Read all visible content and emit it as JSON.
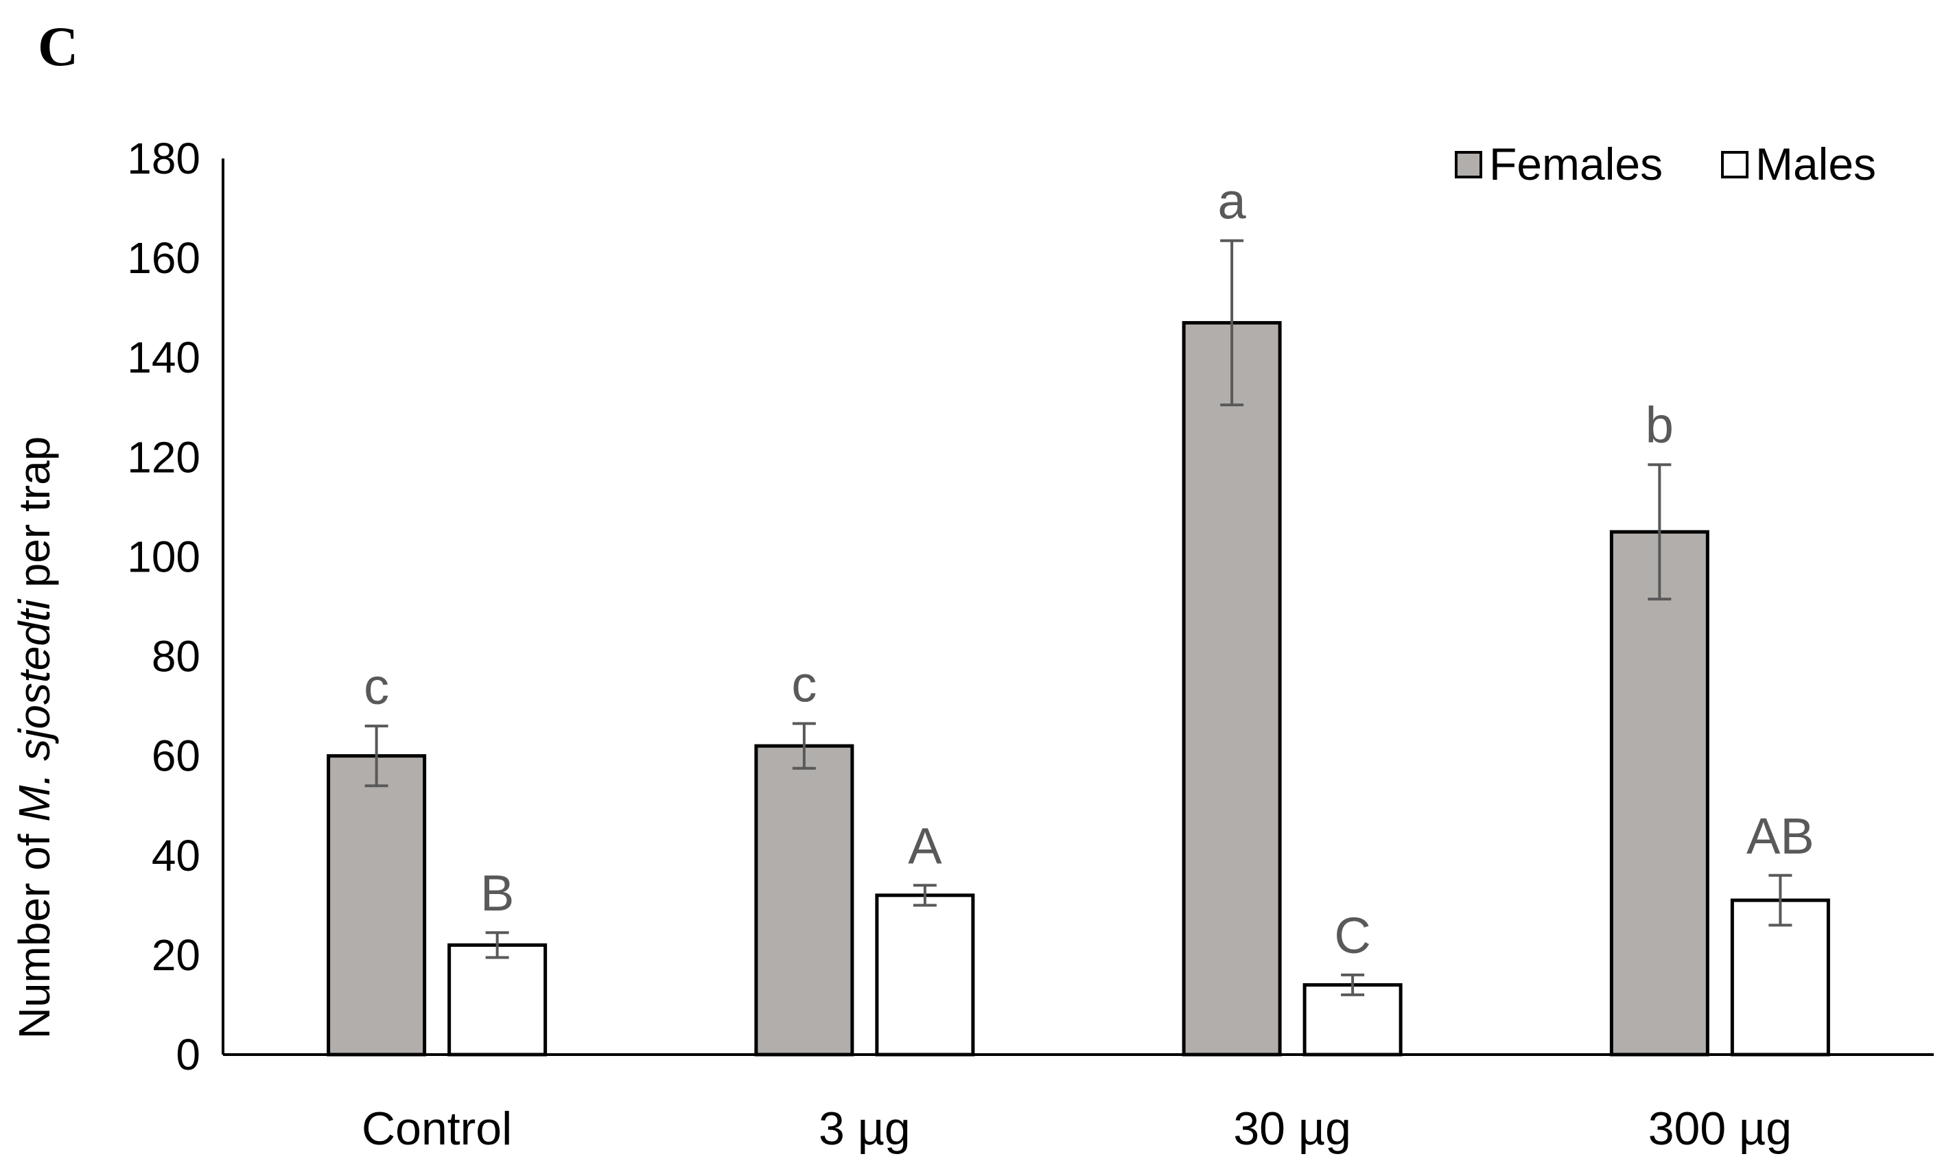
{
  "chart_data": {
    "type": "bar",
    "panel_label": "C",
    "title": "",
    "xlabel": "",
    "ylabel_parts": [
      "Number of ",
      "M. sjostedti",
      " per trap"
    ],
    "ylim": [
      0,
      180
    ],
    "yticks": [
      0,
      20,
      40,
      60,
      80,
      100,
      120,
      140,
      160,
      180
    ],
    "grid": false,
    "legend_position": "top-right",
    "categories": [
      "Control",
      "3 µg",
      "30 µg",
      "300 µg"
    ],
    "series": [
      {
        "name": "Females",
        "color": "#b2aeac",
        "values": [
          60,
          62,
          147,
          105
        ],
        "errors": [
          6,
          4.5,
          16.5,
          13.5
        ],
        "significance": [
          "c",
          "c",
          "a",
          "b"
        ]
      },
      {
        "name": "Males",
        "color": "#ffffff",
        "values": [
          22,
          32,
          14,
          31
        ],
        "errors": [
          2.5,
          2,
          2,
          5
        ],
        "significance": [
          "B",
          "A",
          "C",
          "AB"
        ]
      }
    ]
  }
}
